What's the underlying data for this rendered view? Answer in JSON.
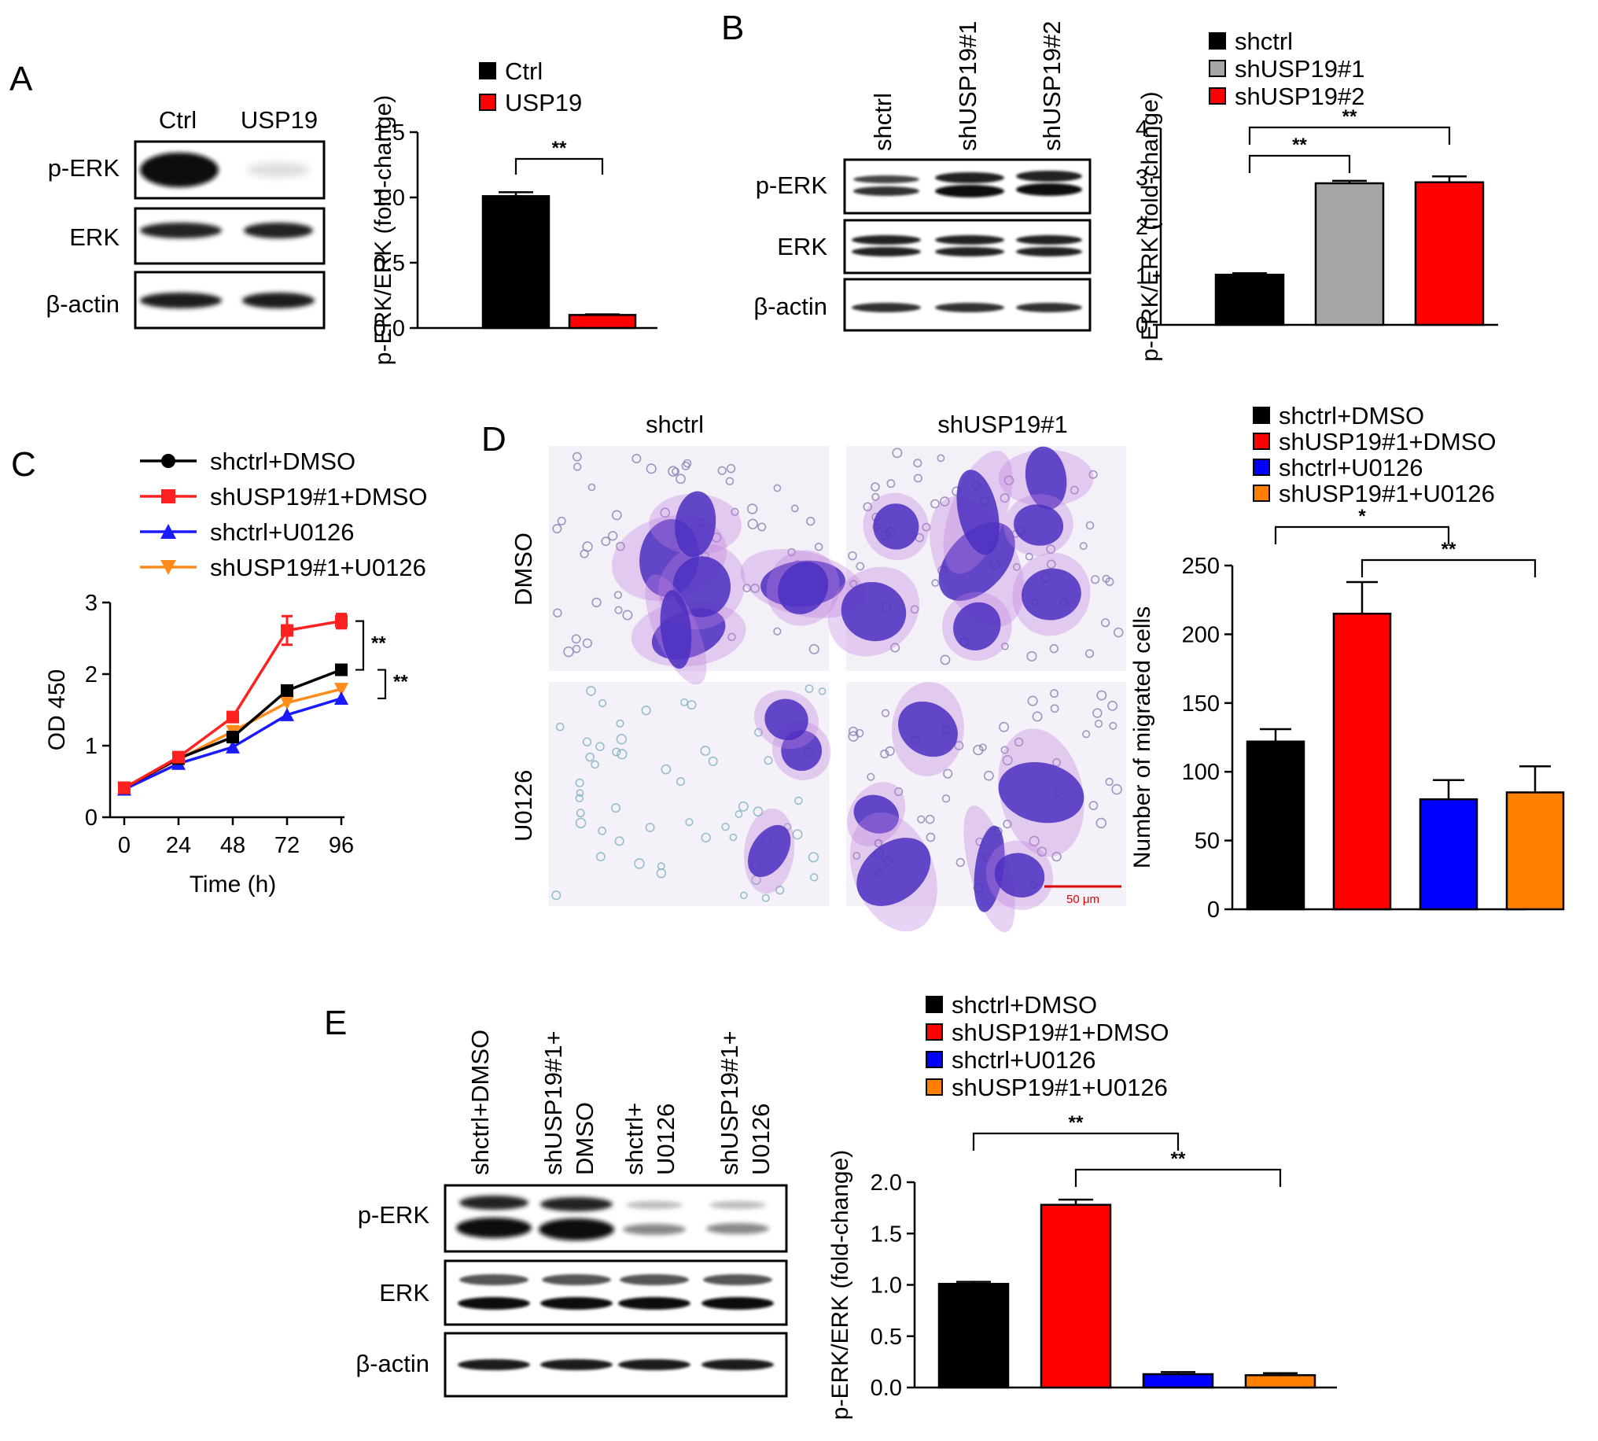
{
  "panels": {
    "A": {
      "label": "A",
      "lanes": [
        "Ctrl",
        "USP19"
      ],
      "rows": [
        "p-ERK",
        "ERK",
        "β-actin"
      ],
      "chart": {
        "type": "bar",
        "categories": [
          "Ctrl",
          "USP19"
        ],
        "values": [
          1.01,
          0.1
        ],
        "errors": [
          0.03,
          0.005
        ],
        "colors": [
          "#000000",
          "#ff0000"
        ],
        "ylabel": "p-ERK/ERK (fold-change)",
        "ylim": [
          0,
          1.5
        ],
        "yticks": [
          "0.0",
          "0.5",
          "1.0",
          "1.5"
        ],
        "legend": [
          "Ctrl",
          "USP19"
        ],
        "sig": [
          {
            "from": 0,
            "to": 1,
            "text": "**"
          }
        ]
      }
    },
    "B": {
      "label": "B",
      "lanes": [
        "shctrl",
        "shUSP19#1",
        "shUSP19#2"
      ],
      "rows": [
        "p-ERK",
        "ERK",
        "β-actin"
      ],
      "chart": {
        "type": "bar",
        "categories": [
          "shctrl",
          "shUSP19#1",
          "shUSP19#2"
        ],
        "values": [
          1.02,
          2.88,
          2.9
        ],
        "errors": [
          0.03,
          0.05,
          0.12
        ],
        "colors": [
          "#000000",
          "#a6a6a8",
          "#ff0000"
        ],
        "ylabel": "p-ERK/ERK (fold-change)",
        "ylim": [
          0,
          4
        ],
        "yticks": [
          "0",
          "1",
          "2",
          "3",
          "4"
        ],
        "legend": [
          "shctrl",
          "shUSP19#1",
          "shUSP19#2"
        ],
        "sig": [
          {
            "from": 0,
            "to": 1,
            "text": "**"
          },
          {
            "from": 0,
            "to": 2,
            "text": "**"
          }
        ]
      }
    },
    "C": {
      "label": "C",
      "chart": {
        "type": "line",
        "x": [
          0,
          24,
          48,
          72,
          96
        ],
        "xticks": [
          "0",
          "24",
          "48",
          "72",
          "96"
        ],
        "yticks": [
          "0",
          "1",
          "2",
          "3"
        ],
        "ylim": [
          0,
          3
        ],
        "xlabel": "Time (h)",
        "ylabel": "OD 450",
        "series": [
          {
            "name": "shctrl+DMSO",
            "color": "#000000",
            "marker": "circle-square",
            "values": [
              0.41,
              0.82,
              1.12,
              1.77,
              2.06
            ],
            "errors": [
              0,
              0,
              0,
              0.04,
              0.04
            ]
          },
          {
            "name": "shUSP19#1+DMSO",
            "color": "#ff2020",
            "marker": "square",
            "values": [
              0.41,
              0.84,
              1.4,
              2.61,
              2.74
            ],
            "errors": [
              0,
              0,
              0.05,
              0.2,
              0.1
            ]
          },
          {
            "name": "shctrl+U0126",
            "color": "#1a1aff",
            "marker": "triangle-up",
            "values": [
              0.39,
              0.75,
              0.98,
              1.43,
              1.66
            ],
            "errors": [
              0,
              0,
              0,
              0,
              0
            ]
          },
          {
            "name": "shUSP19#1+U0126",
            "color": "#ff8c1a",
            "marker": "triangle-down",
            "values": [
              0.41,
              0.81,
              1.2,
              1.6,
              1.79
            ],
            "errors": [
              0,
              0,
              0,
              0,
              0
            ]
          }
        ],
        "sig": [
          "**",
          "**"
        ]
      }
    },
    "D": {
      "label": "D",
      "columns": [
        "shctrl",
        "shUSP19#1"
      ],
      "rows": [
        "DMSO",
        "U0126"
      ],
      "scale_bar": "50 μm",
      "chart": {
        "type": "bar",
        "categories": [
          "shctrl+DMSO",
          "shUSP19#1+DMSO",
          "shctrl+U0126",
          "shUSP19#1+U0126"
        ],
        "values": [
          122,
          215,
          80,
          85
        ],
        "errors": [
          9,
          23,
          14,
          19
        ],
        "colors": [
          "#000000",
          "#ff0000",
          "#0000ff",
          "#ff7f00"
        ],
        "ylabel": "Number of migrated cells",
        "ylim": [
          0,
          250
        ],
        "yticks": [
          "0",
          "50",
          "100",
          "150",
          "200",
          "250"
        ],
        "legend": [
          "shctrl+DMSO",
          "shUSP19#1+DMSO",
          "shctrl+U0126",
          "shUSP19#1+U0126"
        ],
        "sig": [
          {
            "from": 0,
            "to": 2,
            "text": "*"
          },
          {
            "from": 1,
            "to": 3,
            "text": "**"
          }
        ]
      }
    },
    "E": {
      "label": "E",
      "lanes": [
        [
          "shctrl+DMSO"
        ],
        [
          "shUSP19#1+",
          "DMSO"
        ],
        [
          "shctrl+",
          "U0126"
        ],
        [
          "shUSP19#1+",
          "U0126"
        ]
      ],
      "rows": [
        "p-ERK",
        "ERK",
        "β-actin"
      ],
      "chart": {
        "type": "bar",
        "categories": [
          "shctrl+DMSO",
          "shUSP19#1+DMSO",
          "shctrl+U0126",
          "shUSP19#1+U0126"
        ],
        "values": [
          1.01,
          1.78,
          0.13,
          0.12
        ],
        "errors": [
          0.02,
          0.05,
          0.02,
          0.02
        ],
        "colors": [
          "#000000",
          "#ff0000",
          "#0000ff",
          "#ff7f00"
        ],
        "ylabel": "p-ERK/ERK (fold-change)",
        "ylim": [
          0,
          2.0
        ],
        "yticks": [
          "0.0",
          "0.5",
          "1.0",
          "1.5",
          "2.0"
        ],
        "legend": [
          "shctrl+DMSO",
          "shUSP19#1+DMSO",
          "shctrl+U0126",
          "shUSP19#1+U0126"
        ],
        "sig": [
          {
            "from": 0,
            "to": 2,
            "text": "**"
          },
          {
            "from": 1,
            "to": 3,
            "text": "**"
          }
        ]
      }
    }
  }
}
